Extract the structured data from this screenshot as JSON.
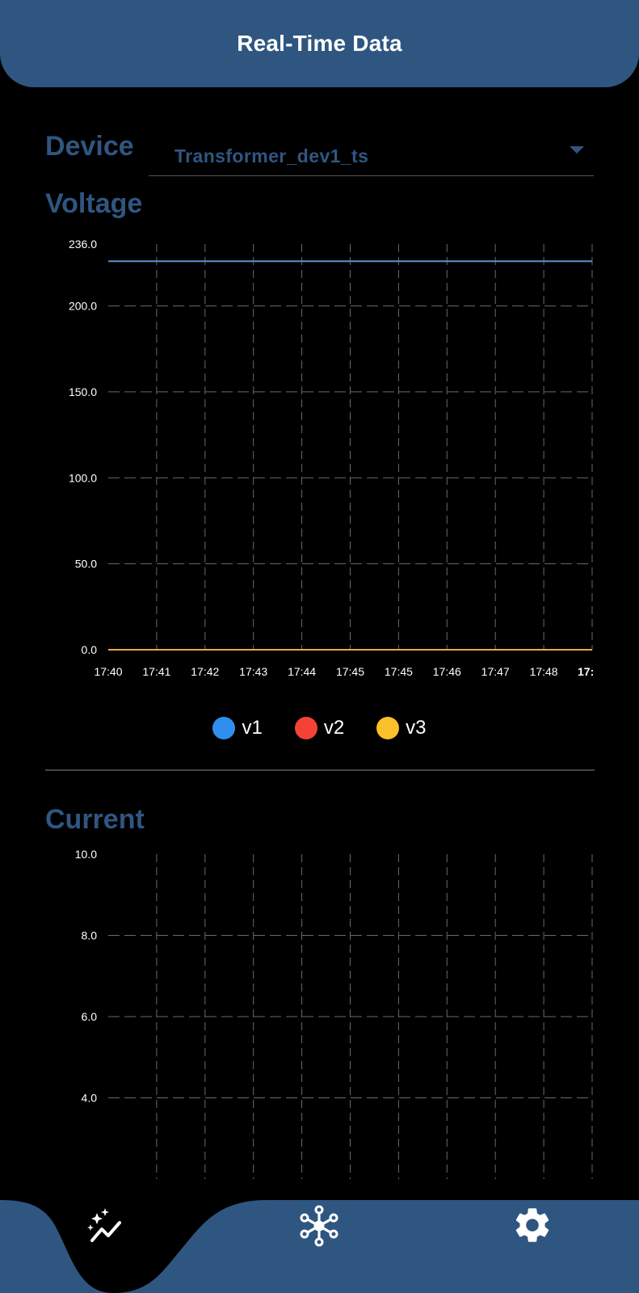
{
  "header": {
    "title": "Real-Time Data"
  },
  "device": {
    "label": "Device",
    "selected": "Transformer_dev1_ts"
  },
  "colors": {
    "primary": "#2f5681",
    "v1": "#2f8ff0",
    "v2": "#f44336",
    "v3": "#fbbf2c",
    "line_v1": "#5b8fd4",
    "line_v3": "#f3a44a"
  },
  "voltage": {
    "title": "Voltage",
    "legend": [
      {
        "name": "v1",
        "color": "#2f8ff0"
      },
      {
        "name": "v2",
        "color": "#f44336"
      },
      {
        "name": "v3",
        "color": "#fbbf2c"
      }
    ],
    "chart_data": {
      "type": "line",
      "x": [
        "17:40",
        "17:41",
        "17:42",
        "17:43",
        "17:44",
        "17:45",
        "17:45",
        "17:46",
        "17:47",
        "17:48",
        "17:"
      ],
      "ylim": [
        0,
        236
      ],
      "yticks": [
        "236.0",
        "200.0",
        "150.0",
        "100.0",
        "50.0",
        "0.0"
      ],
      "ytick_values": [
        236,
        200,
        150,
        100,
        50,
        0
      ],
      "grid": true,
      "series": [
        {
          "name": "v1",
          "values": [
            226,
            226,
            226,
            226,
            226,
            226,
            226,
            226,
            226,
            226,
            226
          ]
        },
        {
          "name": "v2",
          "values": [
            0,
            0,
            0,
            0,
            0,
            0,
            0,
            0,
            0,
            0,
            0
          ]
        },
        {
          "name": "v3",
          "values": [
            0,
            0,
            0,
            0,
            0,
            0,
            0,
            0,
            0,
            0,
            0
          ]
        }
      ]
    }
  },
  "current": {
    "title": "Current",
    "chart_data": {
      "type": "line",
      "ylim": [
        2,
        10
      ],
      "yticks": [
        "10.0",
        "8.0",
        "6.0",
        "4.0"
      ],
      "ytick_values": [
        10,
        8,
        6,
        4
      ],
      "grid": true,
      "series": []
    }
  },
  "nav": {
    "items": [
      {
        "name": "realtime",
        "icon": "sparkle-chart-icon",
        "active": true
      },
      {
        "name": "devices",
        "icon": "network-hub-icon",
        "active": false
      },
      {
        "name": "settings",
        "icon": "gear-icon",
        "active": false
      }
    ]
  }
}
